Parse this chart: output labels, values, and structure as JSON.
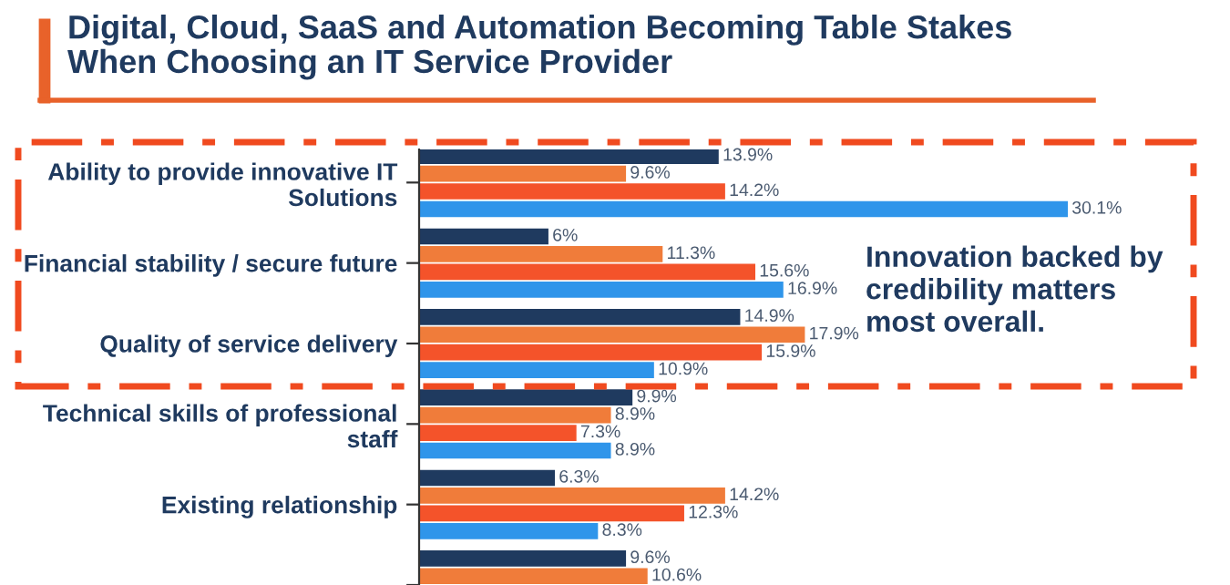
{
  "chart_data": {
    "type": "bar",
    "orientation": "horizontal",
    "title": "Digital, Cloud, SaaS and Automation Becoming Table Stakes\nWhen Choosing an IT Service Provider",
    "categories": [
      "Ability to provide innovative IT\nSolutions",
      "Financial stability / secure future",
      "Quality of service delivery",
      "Technical skills of professional\nstaff",
      "Existing relationship",
      null
    ],
    "series": [
      {
        "color": "#1f3a5f",
        "values": [
          13.9,
          6,
          14.9,
          9.9,
          6.3,
          9.6
        ],
        "value_labels": [
          "13.9%",
          "6%",
          "14.9%",
          "9.9%",
          "6.3%",
          "9.6%"
        ]
      },
      {
        "color": "#f07c3a",
        "values": [
          9.6,
          11.3,
          17.9,
          8.9,
          14.2,
          10.6
        ],
        "value_labels": [
          "9.6%",
          "11.3%",
          "17.9%",
          "8.9%",
          "14.2%",
          "10.6%"
        ]
      },
      {
        "color": "#f4532a",
        "values": [
          14.2,
          15.6,
          15.9,
          7.3,
          12.3,
          null
        ],
        "value_labels": [
          "14.2%",
          "15.6%",
          "15.9%",
          "7.3%",
          "12.3%",
          null
        ]
      },
      {
        "color": "#2f95ea",
        "values": [
          30.1,
          16.9,
          10.9,
          8.9,
          8.3,
          null
        ],
        "value_labels": [
          "30.1%",
          "16.9%",
          "10.9%",
          "8.9%",
          "8.3%",
          null
        ]
      }
    ],
    "annotations": [
      "Innovation backed by\ncredibility matters\nmost overall."
    ],
    "grid": false,
    "legend": false
  }
}
